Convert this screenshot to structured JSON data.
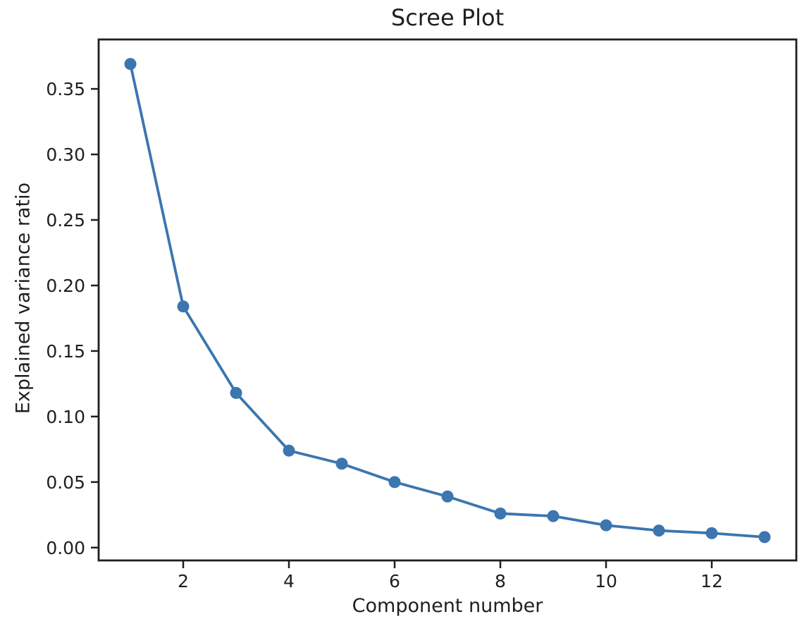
{
  "figure": {
    "title": "Scree Plot",
    "xlabel": "Component number",
    "ylabel": "Explained variance ratio"
  },
  "chart_data": {
    "type": "line",
    "title": "Scree Plot",
    "xlabel": "Component number",
    "ylabel": "Explained variance ratio",
    "x": [
      1,
      2,
      3,
      4,
      5,
      6,
      7,
      8,
      9,
      10,
      11,
      12,
      13
    ],
    "y": [
      0.369,
      0.184,
      0.118,
      0.074,
      0.064,
      0.05,
      0.039,
      0.026,
      0.024,
      0.017,
      0.013,
      0.011,
      0.008
    ],
    "series_name": "Explained variance ratio",
    "xticks": [
      2,
      4,
      6,
      8,
      10,
      12
    ],
    "yticks": [
      "0.00",
      "0.05",
      "0.10",
      "0.15",
      "0.20",
      "0.25",
      "0.30",
      "0.35"
    ],
    "xlim": [
      0.4,
      13.6
    ],
    "ylim": [
      -0.0098,
      0.3877
    ],
    "grid": false,
    "legend": null,
    "marker": "circle",
    "line_color": "#3b76af",
    "marker_color": "#3b76af",
    "axis_color": "#1f1f1f",
    "text_color": "#1f1f1f"
  }
}
